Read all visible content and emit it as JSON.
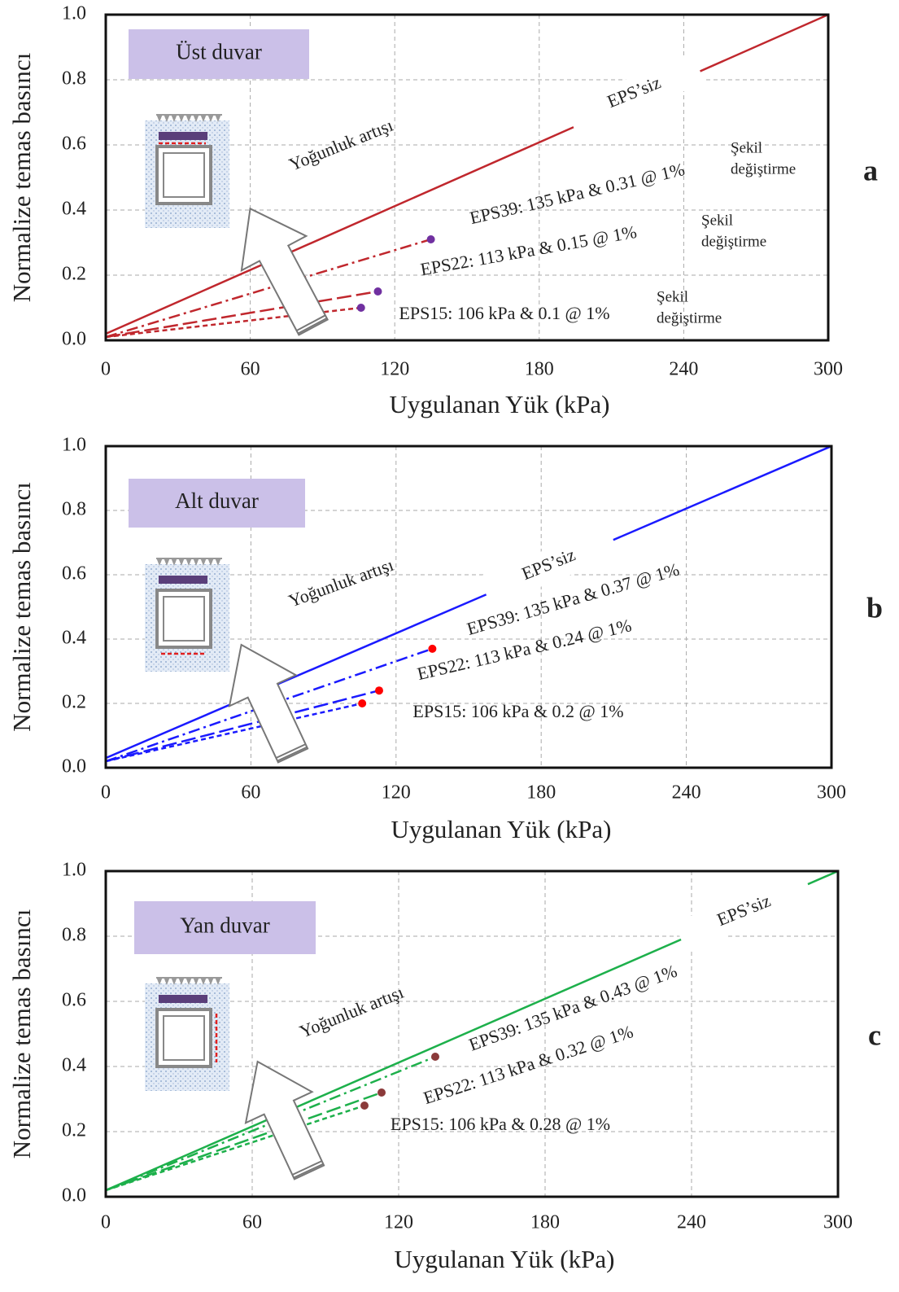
{
  "chart_data": [
    {
      "type": "line",
      "x_label": "Uygulanan Yük (kPa)",
      "y_label": "Normalize temas basıncı",
      "xlim": [
        0,
        300
      ],
      "ylim": [
        0,
        1
      ],
      "xticks": [
        0,
        60,
        120,
        180,
        240,
        300
      ],
      "yticks": [
        {
          "value": 0,
          "label": "0.0"
        },
        0.2,
        0.4,
        0.6,
        0.8,
        {
          "value": 1,
          "label": "1.0"
        }
      ],
      "grid": true,
      "panel_letter": "a",
      "wall_label": "Üst duvar",
      "arrow_label": "Yoğunluk artışı",
      "marker_color": "#7030a0",
      "series": [
        {
          "name": "EPS’siz",
          "color": "#c0272d",
          "style": "solid",
          "x": [
            0,
            300
          ],
          "values": [
            0.02,
            1.0
          ]
        },
        {
          "name": "EPS39: 135 kPa & 0.31 @ 1%",
          "color": "#c0272d",
          "style": "dash-dot",
          "x": [
            0,
            135
          ],
          "values": [
            0.01,
            0.31
          ]
        },
        {
          "name": "EPS22: 113 kPa & 0.15 @ 1%",
          "color": "#c0272d",
          "style": "long-dash",
          "x": [
            0,
            113
          ],
          "values": [
            0.01,
            0.15
          ]
        },
        {
          "name": "EPS15: 106 kPa & 0.1 @ 1%",
          "color": "#c0272d",
          "style": "short-dash",
          "x": [
            0,
            106
          ],
          "values": [
            0.01,
            0.1
          ]
        }
      ],
      "notes": [
        [
          "Şekil",
          "değiştirme"
        ],
        [
          "Şekil",
          "değiştirme"
        ],
        [
          "Şekil",
          "değiştirme"
        ]
      ]
    },
    {
      "type": "line",
      "x_label": "Uygulanan Yük (kPa)",
      "y_label": "Normalize temas basıncı",
      "xlim": [
        0,
        300
      ],
      "ylim": [
        0,
        1
      ],
      "xticks": [
        0,
        60,
        120,
        180,
        240,
        300
      ],
      "yticks": [
        {
          "value": 0,
          "label": "0.0"
        },
        0.2,
        0.4,
        0.6,
        0.8,
        {
          "value": 1,
          "label": "1.0"
        }
      ],
      "grid": true,
      "panel_letter": "b",
      "wall_label": "Alt duvar",
      "arrow_label": "Yoğunluk artışı",
      "marker_color": "#ff0000",
      "series": [
        {
          "name": "EPS’siz",
          "color": "#1a1aff",
          "style": "solid",
          "x": [
            0,
            300
          ],
          "values": [
            0.03,
            1.0
          ]
        },
        {
          "name": "EPS39: 135 kPa & 0.37 @ 1%",
          "color": "#1a1aff",
          "style": "dash-dot",
          "x": [
            0,
            135
          ],
          "values": [
            0.02,
            0.37
          ]
        },
        {
          "name": "EPS22: 113 kPa & 0.24 @ 1%",
          "color": "#1a1aff",
          "style": "long-dash",
          "x": [
            0,
            113
          ],
          "values": [
            0.02,
            0.24
          ]
        },
        {
          "name": "EPS15: 106 kPa & 0.2 @ 1%",
          "color": "#1a1aff",
          "style": "short-dash",
          "x": [
            0,
            106
          ],
          "values": [
            0.02,
            0.2
          ]
        }
      ]
    },
    {
      "type": "line",
      "x_label": "Uygulanan Yük (kPa)",
      "y_label": "Normalize temas basıncı",
      "xlim": [
        0,
        300
      ],
      "ylim": [
        0,
        1
      ],
      "xticks": [
        0,
        60,
        120,
        180,
        240,
        300
      ],
      "yticks": [
        {
          "value": 0,
          "label": "0.0"
        },
        0.2,
        0.4,
        0.6,
        0.8,
        {
          "value": 1,
          "label": "1.0"
        }
      ],
      "grid": true,
      "panel_letter": "c",
      "wall_label": "Yan duvar",
      "arrow_label": "Yoğunluk artışı",
      "marker_color": "#8b3a3a",
      "series": [
        {
          "name": "EPS’siz",
          "color": "#1db04b",
          "style": "solid",
          "x": [
            0,
            300
          ],
          "values": [
            0.02,
            1.0
          ]
        },
        {
          "name": "EPS39: 135 kPa & 0.43 @ 1%",
          "color": "#1db04b",
          "style": "dash-dot",
          "x": [
            0,
            135
          ],
          "values": [
            0.02,
            0.43
          ]
        },
        {
          "name": "EPS22: 113 kPa & 0.32 @ 1%",
          "color": "#1db04b",
          "style": "long-dash",
          "x": [
            0,
            113
          ],
          "values": [
            0.02,
            0.32
          ]
        },
        {
          "name": "EPS15: 106 kPa & 0.28 @ 1%",
          "color": "#1db04b",
          "style": "short-dash",
          "x": [
            0,
            106
          ],
          "values": [
            0.02,
            0.28
          ]
        }
      ]
    }
  ]
}
